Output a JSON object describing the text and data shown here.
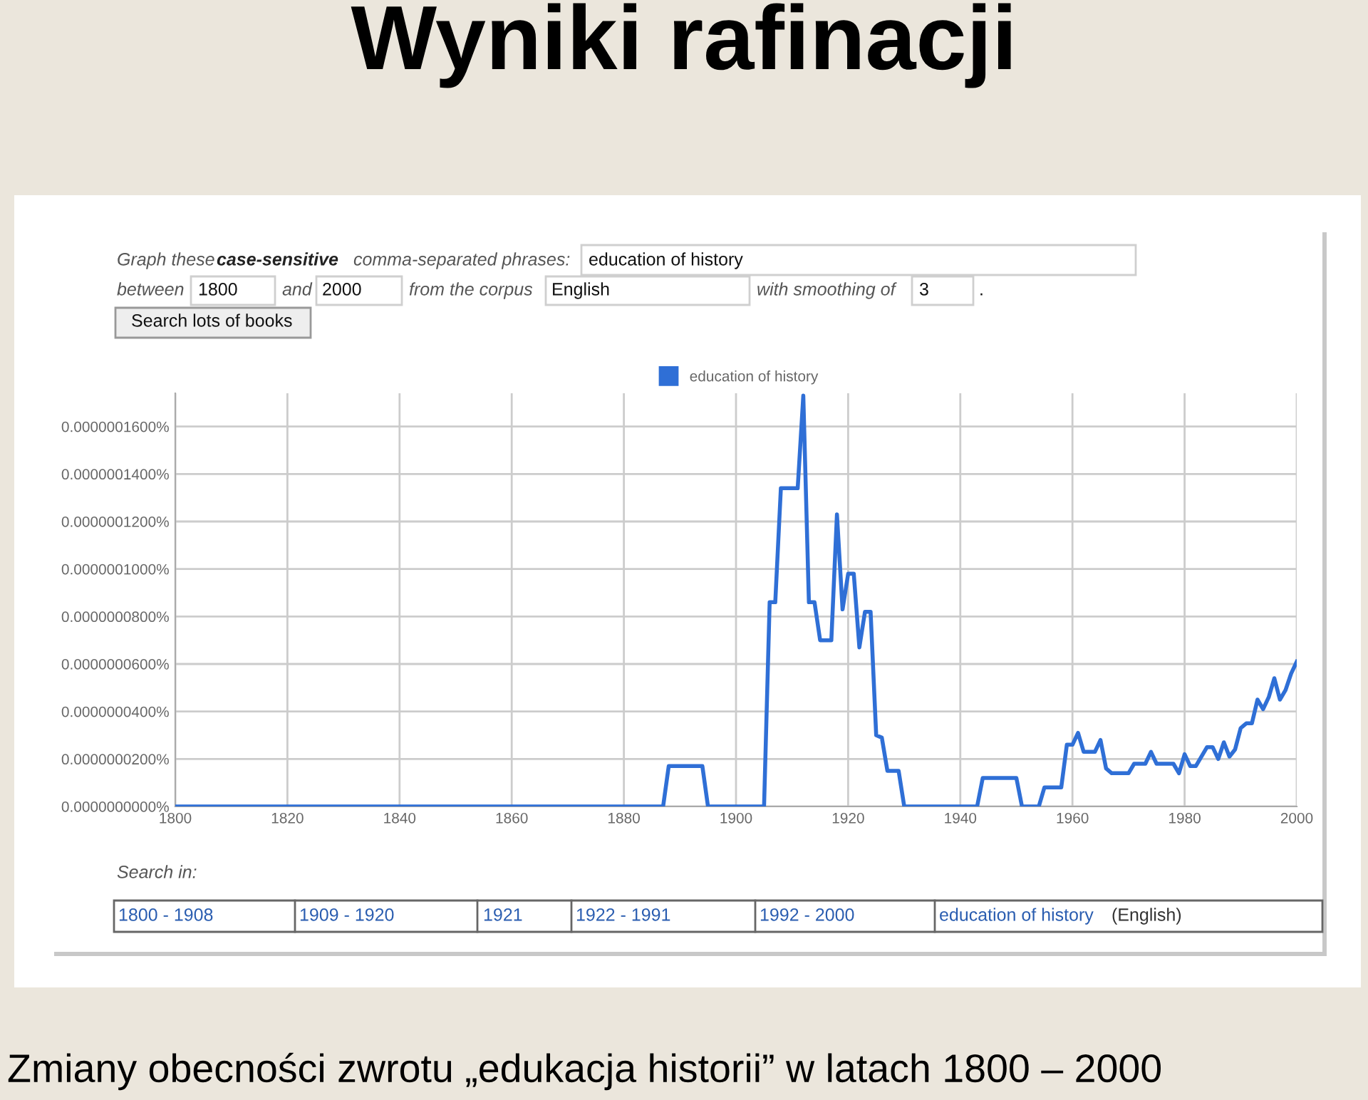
{
  "chart_data": {
    "type": "line",
    "title": "Wyniki rafinacji",
    "x": [
      1800,
      1887,
      1888,
      1894,
      1895,
      1905,
      1906,
      1907,
      1908,
      1911,
      1912,
      1913,
      1914,
      1915,
      1917,
      1918,
      1919,
      1920,
      1921,
      1922,
      1923,
      1924,
      1925,
      1926,
      1927,
      1929,
      1930,
      1943,
      1944,
      1950,
      1951,
      1954,
      1955,
      1958,
      1959,
      1960,
      1961,
      1962,
      1964,
      1965,
      1966,
      1967,
      1970,
      1971,
      1973,
      1974,
      1975,
      1978,
      1979,
      1980,
      1981,
      1982,
      1984,
      1985,
      1986,
      1987,
      1988,
      1989,
      1990,
      1991,
      1992,
      1993,
      1994,
      1995,
      1996,
      1997,
      1998,
      1999,
      2000
    ],
    "series": [
      {
        "name": "education of history",
        "color": "#2f6fd6",
        "values": [
          0,
          0,
          1.7e-08,
          1.7e-08,
          0,
          0,
          8.6e-08,
          8.6e-08,
          1.34e-07,
          1.34e-07,
          1.73e-07,
          8.6e-08,
          8.6e-08,
          7e-08,
          7e-08,
          1.23e-07,
          8.3e-08,
          9.8e-08,
          9.8e-08,
          6.7e-08,
          8.2e-08,
          8.2e-08,
          3e-08,
          2.9e-08,
          1.5e-08,
          1.5e-08,
          0,
          0,
          1.2e-08,
          1.2e-08,
          0,
          0,
          8e-09,
          8e-09,
          2.6e-08,
          2.6e-08,
          3.1e-08,
          2.3e-08,
          2.3e-08,
          2.8e-08,
          1.6e-08,
          1.4e-08,
          1.4e-08,
          1.8e-08,
          1.8e-08,
          2.3e-08,
          1.8e-08,
          1.8e-08,
          1.4e-08,
          2.2e-08,
          1.7e-08,
          1.7e-08,
          2.5e-08,
          2.5e-08,
          2e-08,
          2.7e-08,
          2.1e-08,
          2.4e-08,
          3.3e-08,
          3.5e-08,
          3.5e-08,
          4.5e-08,
          4.1e-08,
          4.6e-08,
          5.4e-08,
          4.5e-08,
          4.9e-08,
          5.6e-08,
          6.1e-08
        ]
      }
    ],
    "xlim": [
      1800,
      2000
    ],
    "xticks": [
      1800,
      1820,
      1840,
      1860,
      1880,
      1900,
      1920,
      1940,
      1960,
      1980,
      2000
    ],
    "ylim": [
      0,
      1.74e-07
    ],
    "yticks": [
      {
        "value": 0,
        "label": "0.0000000000%"
      },
      {
        "value": 2e-08,
        "label": "0.0000000200%"
      },
      {
        "value": 4e-08,
        "label": "0.0000000400%"
      },
      {
        "value": 6e-08,
        "label": "0.0000000600%"
      },
      {
        "value": 8e-08,
        "label": "0.0000000800%"
      },
      {
        "value": 1e-07,
        "label": "0.0000001000%"
      },
      {
        "value": 1.2e-07,
        "label": "0.0000001200%"
      },
      {
        "value": 1.4e-07,
        "label": "0.0000001400%"
      },
      {
        "value": 1.6e-07,
        "label": "0.0000001600%"
      }
    ],
    "grid": true,
    "legend": "top",
    "marker": "none",
    "line_style": "solid",
    "annotations": [
      "Graph these",
      "case-sensitive",
      "comma-separated phrases:",
      "education of history",
      "between",
      "1800",
      "and",
      "2000",
      "from the corpus",
      "English",
      "with smoothing of",
      "3",
      ".",
      "Search lots of books",
      "Search in:",
      "1800 - 1908",
      "1909 - 1920",
      "1921",
      "1922 - 1991",
      "1992 - 2000",
      "education of history",
      "(English)",
      "Zmiany obecności zwrotu „edukacja historii” w latach 1800 – 2000"
    ]
  }
}
